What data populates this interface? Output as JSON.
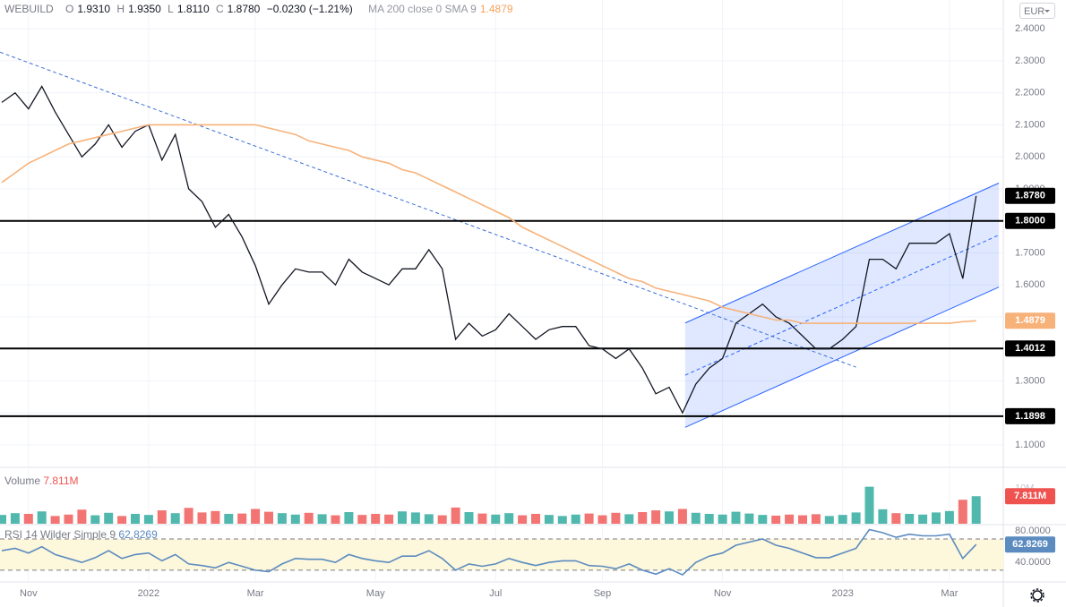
{
  "header": {
    "symbol": "WEBUILD",
    "ohlc": [
      {
        "key": "O",
        "value": "1.9310"
      },
      {
        "key": "H",
        "value": "1.9350"
      },
      {
        "key": "L",
        "value": "1.8110"
      },
      {
        "key": "C",
        "value": "1.8780"
      }
    ],
    "change": "−0.0230 (−1.21%)",
    "study": "MA 200 close 0 SMA 9",
    "study_value": "1.4879",
    "currency": "EUR"
  },
  "chart_data": [
    {
      "type": "line",
      "categories": [
        null,
        null,
        "Nov",
        null,
        null,
        null,
        null,
        null,
        null,
        null,
        null,
        "2022",
        null,
        null,
        null,
        null,
        null,
        null,
        null,
        "Mar",
        null,
        null,
        null,
        null,
        null,
        null,
        null,
        null,
        "May",
        null,
        null,
        null,
        null,
        null,
        null,
        null,
        null,
        "Jul",
        null,
        null,
        null,
        null,
        null,
        null,
        null,
        "Sep",
        null,
        null,
        null,
        null,
        null,
        null,
        null,
        null,
        "Nov",
        null,
        null,
        null,
        null,
        null,
        null,
        null,
        null,
        "2023",
        null,
        null,
        null,
        null,
        null,
        null,
        null,
        "Mar",
        null,
        null
      ],
      "series": [
        {
          "name": "WEBUILD",
          "color": "#131722",
          "values": [
            2.17,
            2.2,
            2.15,
            2.22,
            2.14,
            2.07,
            2.0,
            2.04,
            2.1,
            2.03,
            2.08,
            2.1,
            1.99,
            2.07,
            1.9,
            1.86,
            1.78,
            1.82,
            1.75,
            1.66,
            1.54,
            1.6,
            1.65,
            1.64,
            1.64,
            1.6,
            1.68,
            1.64,
            1.62,
            1.6,
            1.65,
            1.65,
            1.71,
            1.65,
            1.43,
            1.48,
            1.44,
            1.46,
            1.51,
            1.47,
            1.43,
            1.46,
            1.47,
            1.47,
            1.41,
            1.4,
            1.37,
            1.4,
            1.34,
            1.26,
            1.28,
            1.2,
            1.29,
            1.34,
            1.37,
            1.48,
            1.51,
            1.54,
            1.5,
            1.48,
            1.44,
            1.4,
            1.4,
            1.43,
            1.47,
            1.68,
            1.68,
            1.65,
            1.73,
            1.73,
            1.73,
            1.76,
            1.62,
            1.878
          ],
          "last_label": "1.8780"
        },
        {
          "name": "MA 200 close 0 SMA 9",
          "color": "#f7b27a",
          "values": [
            1.92,
            1.95,
            1.98,
            2.0,
            2.02,
            2.04,
            2.05,
            2.06,
            2.07,
            2.08,
            2.09,
            2.1,
            2.1,
            2.1,
            2.1,
            2.1,
            2.1,
            2.1,
            2.1,
            2.1,
            2.09,
            2.08,
            2.07,
            2.05,
            2.04,
            2.03,
            2.02,
            2.0,
            1.99,
            1.98,
            1.96,
            1.95,
            1.93,
            1.91,
            1.89,
            1.87,
            1.85,
            1.83,
            1.81,
            1.78,
            1.76,
            1.74,
            1.72,
            1.7,
            1.68,
            1.66,
            1.64,
            1.62,
            1.61,
            1.59,
            1.58,
            1.57,
            1.56,
            1.55,
            1.53,
            1.52,
            1.51,
            1.5,
            1.49,
            1.49,
            1.48,
            1.48,
            1.48,
            1.48,
            1.48,
            1.48,
            1.48,
            1.48,
            1.48,
            1.48,
            1.48,
            1.48,
            1.485,
            1.4879
          ],
          "last_label": "1.4879"
        }
      ],
      "ylim": [
        1.03,
        2.49
      ],
      "yticks": [
        {
          "value": 1.1,
          "label": "1.1000"
        },
        {
          "value": 1.2,
          "label": "1.2000"
        },
        {
          "value": 1.3,
          "label": "1.3000"
        },
        {
          "value": 1.4,
          "label": "1.4000"
        },
        {
          "value": 1.5,
          "label": "1.5000"
        },
        {
          "value": 1.6,
          "label": "1.6000"
        },
        {
          "value": 1.7,
          "label": "1.7000"
        },
        {
          "value": 1.8,
          "label": "1.8000"
        },
        {
          "value": 1.9,
          "label": "1.9000"
        },
        {
          "value": 2.0,
          "label": "2.0000"
        },
        {
          "value": 2.1,
          "label": "2.1000"
        },
        {
          "value": 2.2,
          "label": "2.2000"
        },
        {
          "value": 2.3,
          "label": "2.3000"
        },
        {
          "value": 2.4,
          "label": "2.4000"
        }
      ],
      "grid": true,
      "levels": [
        {
          "value": 1.8,
          "label": "1.8000"
        },
        {
          "value": 1.4012,
          "label": "1.4012"
        },
        {
          "value": 1.1898,
          "label": "1.1898"
        }
      ],
      "trendline": {
        "color": "#3d6fd6",
        "points": [
          [
            -0.13,
            2.327
          ],
          [
            64,
            1.343
          ]
        ]
      },
      "channel": {
        "color": "#2962ff",
        "lower": [
          [
            51.2,
            1.155
          ],
          [
            74.7,
            1.593
          ]
        ],
        "upper": [
          [
            51.2,
            1.481
          ],
          [
            74.7,
            1.918
          ]
        ]
      }
    },
    {
      "type": "bar",
      "title": "Volume",
      "values": [
        2.5,
        3,
        2.8,
        3.5,
        2.2,
        2.6,
        4,
        2.4,
        3.1,
        2.2,
        2.8,
        2.5,
        3.8,
        3,
        4.5,
        3.2,
        3.6,
        2.8,
        2.9,
        4.2,
        3.4,
        3,
        2.6,
        3.1,
        2.7,
        2.4,
        3.3,
        2.5,
        2.8,
        2.6,
        3.5,
        3.2,
        2.7,
        2.4,
        4.6,
        3.3,
        2.9,
        2.6,
        3,
        2.4,
        2.8,
        2.5,
        2.2,
        2.6,
        2.9,
        2.4,
        3.1,
        2.7,
        3.3,
        3.8,
        3.5,
        4.2,
        3.1,
        2.8,
        2.6,
        3.4,
        2.9,
        2.5,
        2.3,
        2.6,
        2.4,
        2.7,
        2.2,
        2.5,
        3.2,
        10.5,
        4.1,
        3,
        2.8,
        2.6,
        3.2,
        3.6,
        6.8,
        7.811
      ],
      "last_label": "7.811M",
      "up_color": "#26a69a",
      "down_color": "#ef5350",
      "ylim": [
        0,
        16
      ],
      "yticks": [
        {
          "value": 10,
          "label": "10M"
        }
      ]
    },
    {
      "type": "line",
      "title": "RSI 14 Wilder Simple 9",
      "color": "#5b8bbf",
      "values": [
        55,
        58,
        52,
        60,
        50,
        45,
        40,
        46,
        55,
        45,
        50,
        52,
        42,
        50,
        38,
        36,
        33,
        40,
        35,
        30,
        28,
        38,
        45,
        44,
        44,
        40,
        50,
        45,
        42,
        40,
        48,
        48,
        55,
        45,
        30,
        38,
        35,
        38,
        45,
        40,
        36,
        40,
        42,
        42,
        36,
        35,
        32,
        38,
        30,
        25,
        32,
        24,
        40,
        48,
        52,
        62,
        66,
        70,
        62,
        58,
        52,
        46,
        46,
        52,
        58,
        82,
        78,
        72,
        76,
        74,
        74,
        76,
        45,
        62.8269
      ],
      "last_label": "62.8269",
      "ylim": [
        15,
        86
      ],
      "yticks": [
        {
          "value": 40,
          "label": "40.0000"
        },
        {
          "value": 80,
          "label": "80.0000"
        }
      ],
      "band": [
        30,
        70
      ]
    }
  ]
}
